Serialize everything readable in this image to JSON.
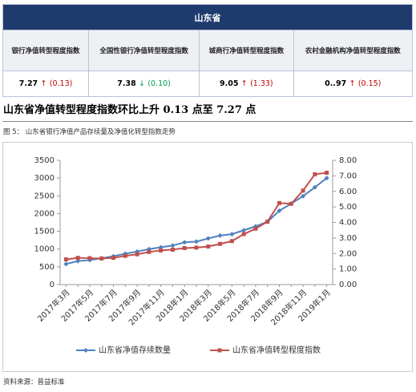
{
  "table": {
    "title": "山东省",
    "headers": [
      "银行净值转型程度指数",
      "全国性银行净值转型程度指数",
      "城商行净值转型程度指数",
      "农村金融机构净值转型程度指数"
    ],
    "cells": [
      {
        "value": "7.27",
        "arrow": "↑",
        "change": "(0.13)",
        "color": "#c00000"
      },
      {
        "value": "7.38",
        "arrow": "↓",
        "change": "(0.10)",
        "color": "#00a050"
      },
      {
        "value": "9.05",
        "arrow": "↑",
        "change": "(1.33)",
        "color": "#c00000"
      },
      {
        "value": "0..97",
        "arrow": "↑",
        "change": "(0.15)",
        "color": "#c00000"
      }
    ]
  },
  "heading": "山东省净值转型程度指数环比上升 0.13 点至 7.27 点",
  "figure_caption": "图 5： 山东省银行净值产品存续量及净值化转型指数走势",
  "chart_data": {
    "type": "line",
    "categories": [
      "2017年3月",
      null,
      "2017年5月",
      null,
      "2017年7月",
      null,
      "2017年9月",
      null,
      "2017年11月",
      null,
      "2018年1月",
      null,
      "2018年3月",
      null,
      "2018年5月",
      null,
      "2018年7月",
      null,
      "2018年9月",
      null,
      "2018年11月",
      null,
      "2019年1月"
    ],
    "series": [
      {
        "name": "山东省净值存续数量",
        "color": "#4f81bd",
        "values": [
          580,
          660,
          690,
          740,
          800,
          870,
          930,
          1000,
          1050,
          1100,
          1190,
          1210,
          1300,
          1380,
          1420,
          1530,
          1640,
          1770,
          2080,
          2280,
          2490,
          2740,
          3000
        ]
      },
      {
        "name": "山东省净值转型程度指数",
        "color": "#c0504d",
        "axis": "y2",
        "values": [
          1.62,
          1.72,
          1.7,
          1.68,
          1.72,
          1.85,
          1.95,
          2.1,
          2.2,
          2.25,
          2.35,
          2.38,
          2.45,
          2.62,
          2.8,
          3.25,
          3.6,
          4.05,
          5.25,
          5.2,
          6.05,
          7.1,
          7.2
        ]
      }
    ],
    "ylim": [
      0,
      3500
    ],
    "yticks": [
      0,
      500,
      1000,
      1500,
      2000,
      2500,
      3000,
      3500
    ],
    "y2lim": [
      0,
      8
    ],
    "y2ticks": [
      {
        "value": 0,
        "label": "0.00"
      },
      {
        "value": 1,
        "label": "1.00"
      },
      {
        "value": 2,
        "label": "2.00"
      },
      {
        "value": 3,
        "label": "3.00"
      },
      {
        "value": 4,
        "label": "4.00"
      },
      {
        "value": 5,
        "label": "5.00"
      },
      {
        "value": 6,
        "label": "6.00"
      },
      {
        "value": 7,
        "label": "7.00"
      },
      {
        "value": 8,
        "label": "8.00"
      }
    ]
  },
  "source": "资料来源：普益标准"
}
